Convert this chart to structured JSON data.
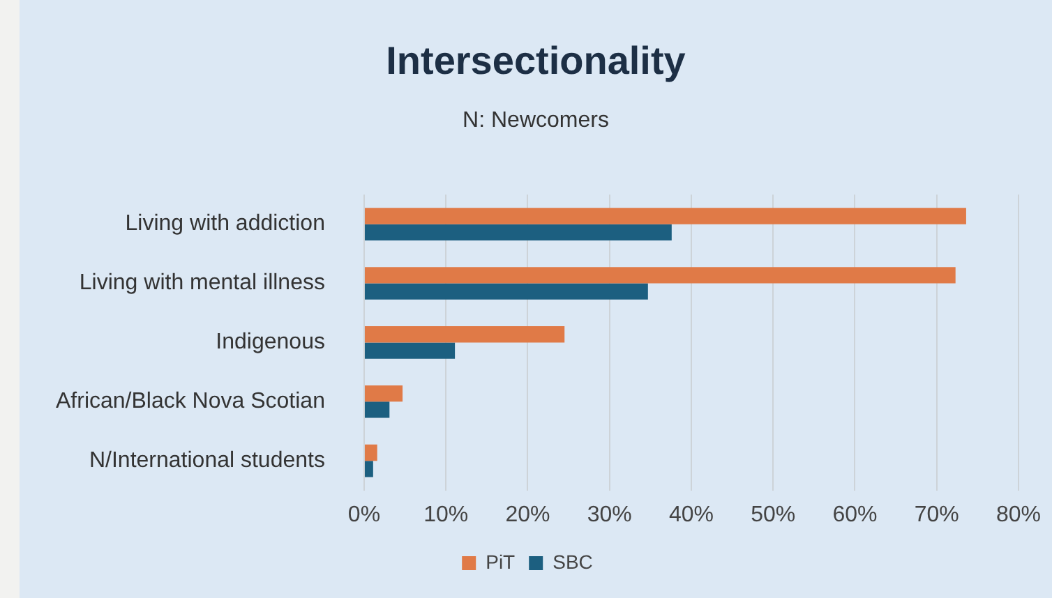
{
  "chart_data": {
    "type": "bar",
    "orientation": "horizontal",
    "title": "Intersectionality",
    "subtitle": "N: Newcomers",
    "categories": [
      "Living with addiction",
      "Living with mental illness",
      "Indigenous",
      "African/Black Nova Scotian",
      "N/International students"
    ],
    "series": [
      {
        "name": "PiT",
        "color": "#e07a47",
        "values": [
          73.6,
          72.3,
          24.5,
          4.7,
          1.6
        ]
      },
      {
        "name": "SBC",
        "color": "#1c5f80",
        "values": [
          37.6,
          34.7,
          11.1,
          3.1,
          1.1
        ]
      }
    ],
    "xlim": [
      0,
      80
    ],
    "xticks": [
      {
        "value": 0,
        "label": "0%"
      },
      {
        "value": 10,
        "label": "10%"
      },
      {
        "value": 20,
        "label": "20%"
      },
      {
        "value": 30,
        "label": "30%"
      },
      {
        "value": 40,
        "label": "40%"
      },
      {
        "value": 50,
        "label": "50%"
      },
      {
        "value": 60,
        "label": "60%"
      },
      {
        "value": 70,
        "label": "70%"
      },
      {
        "value": 80,
        "label": "80%"
      }
    ],
    "grid": "x",
    "legend": "bottom"
  }
}
